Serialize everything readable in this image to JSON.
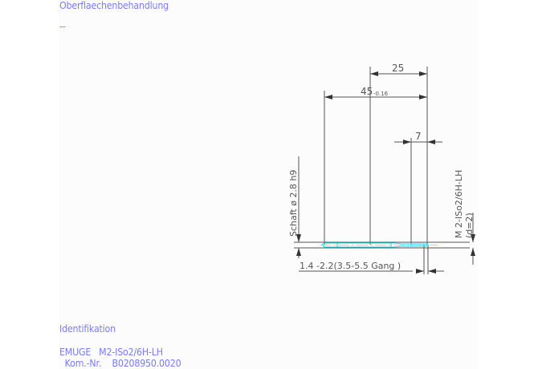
{
  "header": {
    "surface_label": "Oberflaechenbehandlung",
    "surface_value": "--"
  },
  "drawing": {
    "dim_25": "25",
    "dim_45": "45",
    "dim_45_tol": "-0.16",
    "dim_7": "7",
    "shank_label": "Schaft ø 2.8  h9",
    "thread_label": "M 2-ISo2/6H-LH",
    "thread_d": "(d=2)",
    "chamfer_label": "1.4 -2.2(3.5-5.5 Gang  )",
    "colors": {
      "lines": "#555555",
      "tool_outline": "#00e5ff",
      "centerline": "#e8e800",
      "text": "#7b7bff"
    }
  },
  "footer": {
    "ident_label": "Identifikation",
    "ident_line1": "EMUGE   M2-ISo2/6H-LH",
    "ident_line2": "  Kom.-Nr.    B0208950.0020"
  }
}
